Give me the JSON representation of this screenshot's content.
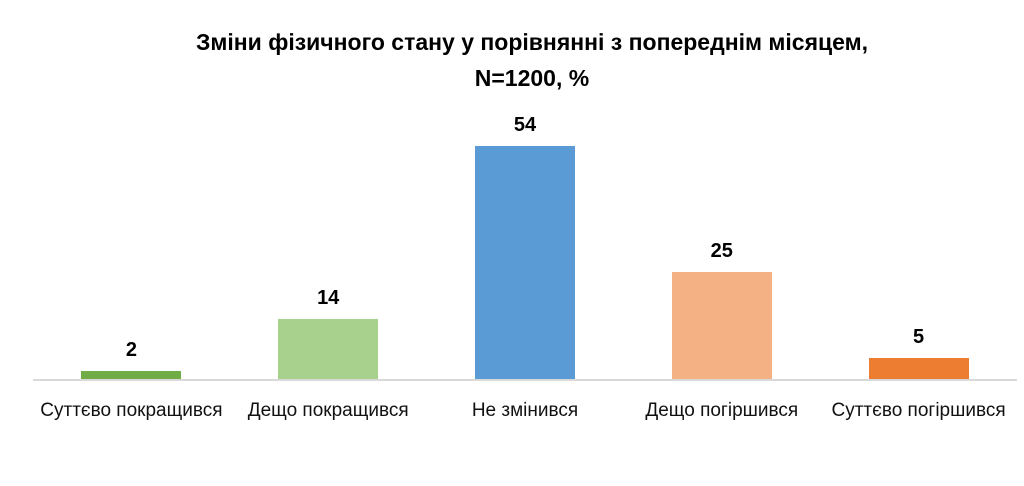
{
  "title": {
    "line1": "Зміни фізичного стану у порівнянні з попереднім місяцем,",
    "line2": "N=1200, %"
  },
  "chart_data": {
    "type": "bar",
    "title": "Зміни фізичного стану у порівнянні з попереднім місяцем, N=1200, %",
    "sample_size_note": "N=1200, %",
    "categories": [
      "Суттєво покращився",
      "Дещо покращився",
      "Не змінився",
      "Дещо погіршився",
      "Суттєво погіршився"
    ],
    "values": [
      2,
      14,
      54,
      25,
      5
    ],
    "bar_colors": [
      "#70AD47",
      "#A9D18E",
      "#5B9BD5",
      "#F4B183",
      "#ED7D31"
    ],
    "data_labels": [
      2,
      14,
      54,
      25,
      5
    ],
    "xlabel": "",
    "ylabel": "",
    "ylim": [
      0,
      60
    ],
    "grid": false,
    "legend_position": "none",
    "axis_line_color": "#D9D9D9",
    "background_color": "#FFFFFF"
  }
}
